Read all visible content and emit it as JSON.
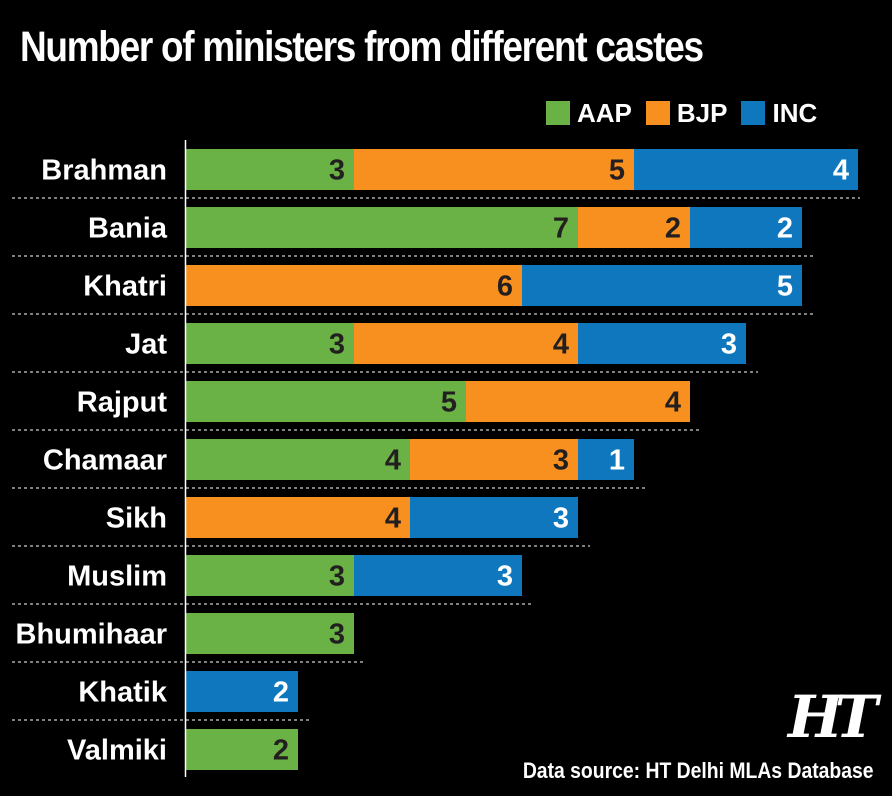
{
  "chart_data": {
    "type": "bar",
    "orientation": "horizontal",
    "stacked": true,
    "title": "Number of ministers from different castes",
    "categories": [
      "Brahman",
      "Bania",
      "Khatri",
      "Jat",
      "Rajput",
      "Chamaar",
      "Sikh",
      "Muslim",
      "Bhumihaar",
      "Khatik",
      "Valmiki"
    ],
    "series": [
      {
        "name": "AAP",
        "color": "#6ab245",
        "values": [
          3,
          7,
          0,
          3,
          5,
          4,
          0,
          3,
          3,
          0,
          2
        ]
      },
      {
        "name": "BJP",
        "color": "#f7901e",
        "values": [
          5,
          2,
          6,
          4,
          4,
          3,
          4,
          0,
          0,
          0,
          0
        ]
      },
      {
        "name": "INC",
        "color": "#0f77be",
        "values": [
          4,
          2,
          5,
          3,
          0,
          1,
          3,
          3,
          0,
          2,
          0
        ]
      }
    ],
    "legend_position": "top-right",
    "xlim": [
      0,
      12
    ],
    "grid": false
  },
  "legend": {
    "items": [
      "AAP",
      "BJP",
      "INC"
    ]
  },
  "source": "Data source: HT Delhi MLAs Database",
  "logo": "HT"
}
